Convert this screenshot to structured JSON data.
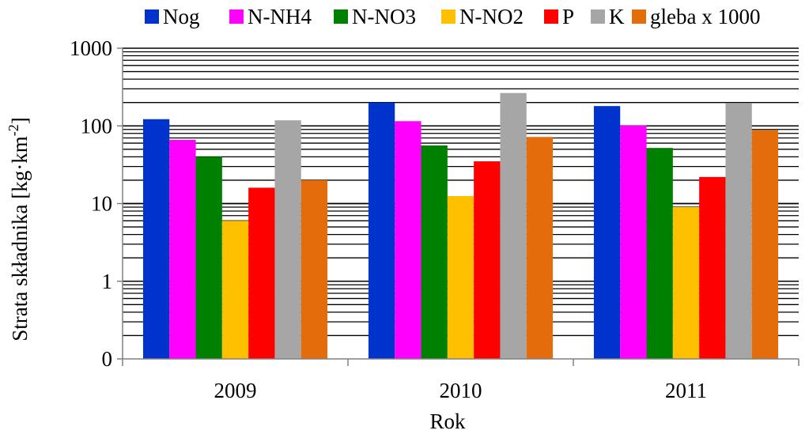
{
  "chart_data": {
    "type": "bar",
    "title": "",
    "xlabel": "Rok",
    "ylabel": "Strata składnika [kg·km-2]",
    "ylabel_parts": {
      "main": "Strata składnika [kg·km",
      "sup": "-2",
      "close": "]"
    },
    "yscale": "log",
    "ylim": [
      0.1,
      1000
    ],
    "yticks": [
      {
        "value": 0.1,
        "label": "0"
      },
      {
        "value": 1,
        "label": "1"
      },
      {
        "value": 10,
        "label": "10"
      },
      {
        "value": 100,
        "label": "100"
      },
      {
        "value": 1000,
        "label": "1000"
      }
    ],
    "grid": "horizontal major and minor",
    "legend_position": "top",
    "categories": [
      "2009",
      "2010",
      "2011"
    ],
    "series": [
      {
        "name": "Nog",
        "color": "#0033CC",
        "values": [
          122,
          200,
          180
        ]
      },
      {
        "name": "N-NH4",
        "color": "#FF00FF",
        "values": [
          66,
          115,
          101
        ]
      },
      {
        "name": "N-NO3",
        "color": "#008000",
        "values": [
          40,
          56,
          52
        ]
      },
      {
        "name": "N-NO2",
        "color": "#FFC000",
        "values": [
          6,
          12.5,
          9
        ]
      },
      {
        "name": "P",
        "color": "#FF0000",
        "values": [
          16,
          35,
          22
        ]
      },
      {
        "name": "K",
        "color": "#A6A6A6",
        "values": [
          118,
          265,
          195
        ]
      },
      {
        "name": "gleba x 1000",
        "color": "#E46C0A",
        "values": [
          20,
          72,
          88
        ]
      }
    ]
  }
}
